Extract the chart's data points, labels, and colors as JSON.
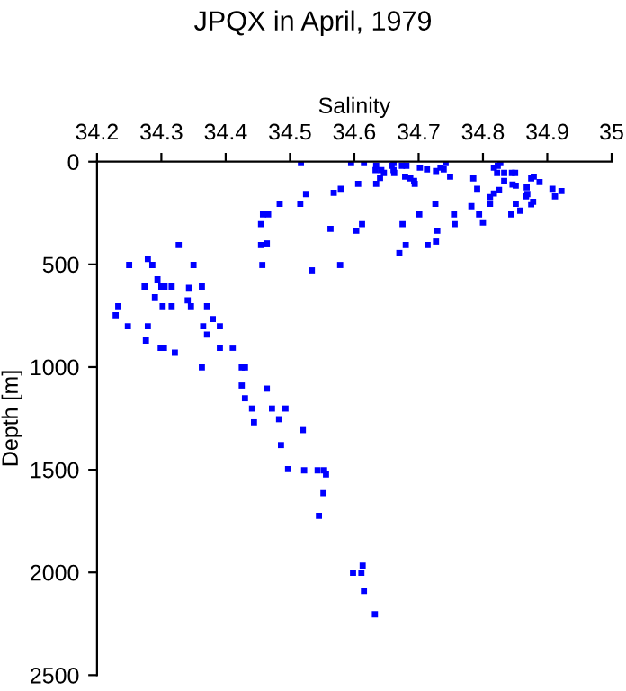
{
  "chart_data": {
    "type": "scatter",
    "title": "JPQX in April, 1979",
    "xlabel": "Salinity",
    "ylabel": "Depth [m]",
    "xlim": [
      34.2,
      35
    ],
    "xticks": [
      34.2,
      34.3,
      34.4,
      34.5,
      34.6,
      34.7,
      34.8,
      34.9,
      35
    ],
    "ylim": [
      2500,
      0
    ],
    "yticks": [
      0,
      500,
      1000,
      1500,
      2000,
      2500
    ],
    "marker": "square",
    "grid": false,
    "legend": false,
    "series": [
      {
        "color": "#0000ff",
        "x": [
          34.43,
          34.441,
          34.472,
          34.493,
          34.444,
          34.483,
          34.52,
          34.486,
          34.497,
          34.522,
          34.543,
          34.553,
          34.556,
          34.552,
          34.545,
          34.613,
          34.598,
          34.611,
          34.615,
          34.632,
          34.517,
          34.595,
          34.606,
          34.579,
          34.568,
          34.525,
          34.484,
          34.516,
          34.458,
          34.466,
          34.455,
          34.563,
          34.603,
          34.327,
          34.455,
          34.464,
          34.279,
          34.25,
          34.286,
          34.35,
          34.457,
          34.534,
          34.578,
          34.294,
          34.274,
          34.3,
          34.305,
          34.316,
          34.343,
          34.363,
          34.29,
          34.341,
          34.233,
          34.302,
          34.316,
          34.346,
          34.371,
          34.229,
          34.38,
          34.248,
          34.279,
          34.365,
          34.391,
          34.371,
          34.276,
          34.299,
          34.304,
          34.391,
          34.411,
          34.321,
          34.363,
          34.425,
          34.43,
          34.425,
          34.464,
          34.615,
          34.634,
          34.633,
          34.642,
          34.646,
          34.64,
          34.634,
          34.661,
          34.658,
          34.661,
          34.662,
          34.674,
          34.681,
          34.679,
          34.687,
          34.693,
          34.694,
          34.702,
          34.713,
          34.727,
          34.734,
          34.742,
          34.739,
          34.749,
          34.785,
          34.791,
          34.811,
          34.811,
          34.817,
          34.825,
          34.827,
          34.823,
          34.817,
          34.822,
          34.833,
          34.845,
          34.85,
          34.833,
          34.846,
          34.851,
          34.868,
          34.875,
          34.879,
          34.888,
          34.869,
          34.867,
          34.878,
          34.875,
          34.851,
          34.858,
          34.844,
          34.908,
          34.922,
          34.912,
          34.782,
          34.726,
          34.755,
          34.794,
          34.8,
          34.701,
          34.675,
          34.756,
          34.729,
          34.68,
          34.67,
          34.714,
          34.727,
          34.612
        ],
        "values": [
          1152,
          1202,
          1202,
          1202,
          1269,
          1254,
          1307,
          1380,
          1497,
          1503,
          1503,
          1503,
          1523,
          1614,
          1725,
          1967,
          2002,
          2002,
          2090,
          2204,
          3,
          3,
          108,
          132,
          152,
          158,
          205,
          205,
          257,
          257,
          304,
          327,
          336,
          406,
          406,
          398,
          474,
          503,
          503,
          503,
          503,
          529,
          503,
          573,
          608,
          608,
          608,
          608,
          614,
          608,
          660,
          675,
          704,
          704,
          704,
          704,
          704,
          748,
          766,
          801,
          801,
          801,
          801,
          842,
          871,
          906,
          906,
          906,
          906,
          930,
          1002,
          1002,
          1002,
          1090,
          1105,
          3,
          20,
          41,
          41,
          55,
          79,
          108,
          3,
          20,
          41,
          55,
          20,
          20,
          73,
          82,
          94,
          108,
          29,
          38,
          46,
          29,
          3,
          38,
          73,
          82,
          132,
          173,
          205,
          155,
          138,
          3,
          20,
          29,
          55,
          55,
          55,
          55,
          94,
          111,
          117,
          125,
          82,
          73,
          99,
          158,
          169,
          196,
          208,
          205,
          239,
          257,
          132,
          143,
          169,
          217,
          205,
          257,
          257,
          296,
          257,
          304,
          304,
          336,
          406,
          445,
          406,
          389,
          304
        ]
      }
    ]
  }
}
